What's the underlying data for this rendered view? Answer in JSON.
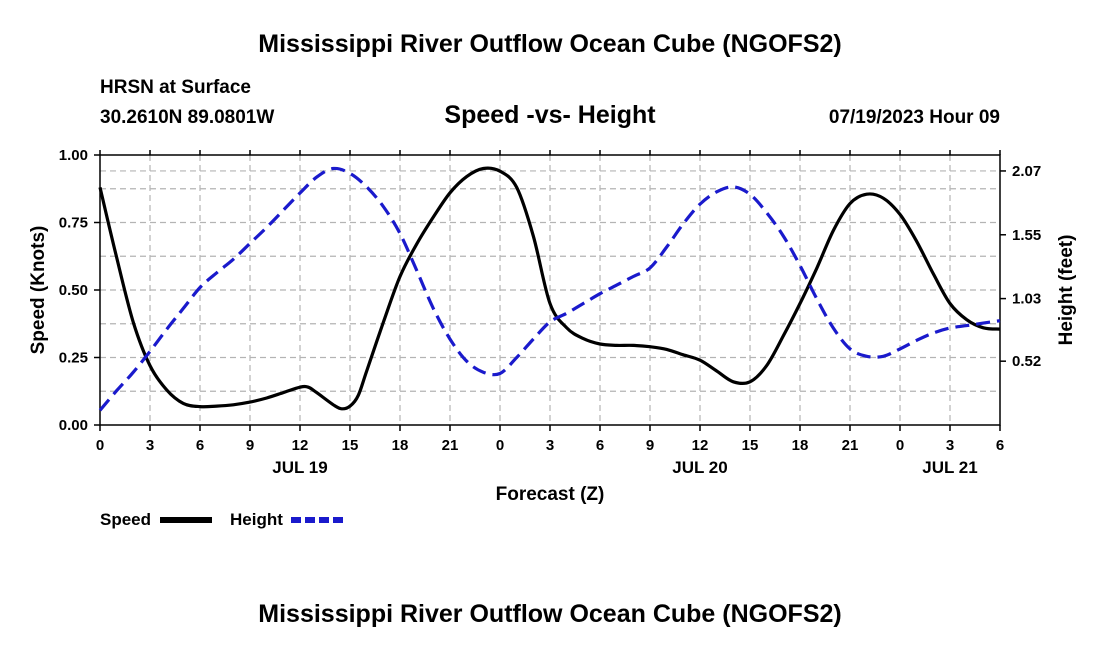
{
  "header": {
    "title": "Mississippi River Outflow Ocean Cube (NGOFS2)",
    "station": "HRSN at Surface",
    "coords": "30.2610N  89.0801W",
    "subtitle": "Speed -vs- Height",
    "datetime": "07/19/2023 Hour 09"
  },
  "footer": {
    "title": "Mississippi River Outflow Ocean Cube (NGOFS2)"
  },
  "chart_data": {
    "type": "line",
    "title": "Speed -vs- Height",
    "xlabel": "Forecast (Z)",
    "ylabel": "Speed (Knots)",
    "y2label": "Height (feet)",
    "xlim": [
      0,
      54
    ],
    "ylim": [
      0,
      1.0
    ],
    "y2lim": [
      0,
      2.2
    ],
    "grid": true,
    "x_ticks": [
      0,
      3,
      6,
      9,
      12,
      15,
      18,
      21,
      24,
      27,
      30,
      33,
      36,
      39,
      42,
      45,
      48,
      51,
      54
    ],
    "x_tick_labels": [
      "0",
      "3",
      "6",
      "9",
      "12",
      "15",
      "18",
      "21",
      "0",
      "3",
      "6",
      "9",
      "12",
      "15",
      "18",
      "21",
      "0",
      "3",
      "6"
    ],
    "date_labels": [
      {
        "x": 12,
        "label": "JUL 19"
      },
      {
        "x": 36,
        "label": "JUL 20"
      },
      {
        "x": 51,
        "label": "JUL 21"
      }
    ],
    "y_ticks": [
      0.0,
      0.25,
      0.5,
      0.75,
      1.0
    ],
    "y_tick_labels": [
      "0.00",
      "0.25",
      "0.50",
      "0.75",
      "1.00"
    ],
    "y2_ticks": [
      0.52,
      1.03,
      1.55,
      2.07
    ],
    "y2_tick_labels": [
      "0.52",
      "1.03",
      "1.55",
      "2.07"
    ],
    "legend": [
      {
        "name": "Speed",
        "color": "#000000",
        "style": "solid"
      },
      {
        "name": "Height",
        "color": "#1a1acc",
        "style": "dashed"
      }
    ],
    "series": [
      {
        "name": "Speed",
        "axis": "left",
        "color": "#000000",
        "x": [
          0,
          1,
          2,
          3,
          4,
          5,
          6,
          7,
          8,
          9,
          10,
          11,
          12,
          12.5,
          13,
          14,
          14.5,
          15,
          15.5,
          16,
          17,
          18,
          19,
          20,
          21,
          22,
          23,
          24,
          25,
          26,
          27,
          28,
          29,
          30,
          31,
          32,
          33,
          34,
          35,
          36,
          37,
          38,
          39,
          40,
          41,
          42,
          43,
          44,
          45,
          46,
          47,
          48,
          49,
          50,
          51,
          52,
          53,
          54
        ],
        "values": [
          0.88,
          0.62,
          0.38,
          0.22,
          0.13,
          0.08,
          0.068,
          0.07,
          0.075,
          0.085,
          0.1,
          0.12,
          0.14,
          0.14,
          0.12,
          0.075,
          0.06,
          0.07,
          0.11,
          0.2,
          0.38,
          0.55,
          0.67,
          0.77,
          0.86,
          0.92,
          0.95,
          0.94,
          0.88,
          0.7,
          0.45,
          0.36,
          0.32,
          0.3,
          0.295,
          0.295,
          0.29,
          0.28,
          0.26,
          0.24,
          0.2,
          0.16,
          0.16,
          0.22,
          0.33,
          0.45,
          0.58,
          0.72,
          0.82,
          0.855,
          0.84,
          0.78,
          0.68,
          0.56,
          0.45,
          0.39,
          0.36,
          0.355
        ]
      },
      {
        "name": "Height",
        "axis": "right",
        "color": "#1a1acc",
        "x": [
          0,
          1,
          2,
          3,
          4,
          5,
          6,
          7,
          8,
          9,
          10,
          11,
          12,
          13,
          14,
          15,
          16,
          17,
          18,
          19,
          20,
          21,
          22,
          23,
          24,
          25,
          26,
          27,
          28,
          29,
          30,
          31,
          32,
          33,
          34,
          35,
          36,
          37,
          38,
          39,
          40,
          41,
          42,
          43,
          44,
          45,
          46,
          47,
          48,
          49,
          50,
          51,
          52,
          53,
          54
        ],
        "values": [
          0.12,
          0.28,
          0.43,
          0.6,
          0.78,
          0.95,
          1.12,
          1.24,
          1.35,
          1.48,
          1.61,
          1.75,
          1.89,
          2.02,
          2.09,
          2.05,
          1.94,
          1.78,
          1.56,
          1.26,
          0.95,
          0.7,
          0.52,
          0.43,
          0.42,
          0.55,
          0.7,
          0.84,
          0.91,
          0.99,
          1.07,
          1.14,
          1.21,
          1.28,
          1.45,
          1.64,
          1.8,
          1.9,
          1.94,
          1.88,
          1.73,
          1.54,
          1.3,
          1.03,
          0.79,
          0.62,
          0.56,
          0.56,
          0.62,
          0.69,
          0.75,
          0.79,
          0.81,
          0.83,
          0.85
        ]
      }
    ]
  }
}
